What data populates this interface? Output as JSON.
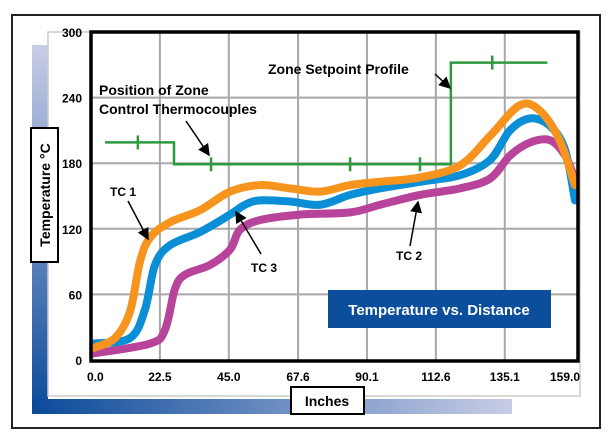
{
  "chart_data": {
    "type": "line",
    "title": "Temperature vs. Distance",
    "xlabel": "Inches",
    "ylabel": "Temperature °C",
    "xlim": [
      0,
      159
    ],
    "ylim": [
      0,
      300
    ],
    "xticks": [
      "0.0",
      "22.5",
      "45.0",
      "67.6",
      "90.1",
      "112.6",
      "135.1",
      "159.0"
    ],
    "xtick_values": [
      0,
      22.5,
      45.0,
      67.6,
      90.1,
      112.6,
      135.1,
      159.0
    ],
    "yticks": [
      "0",
      "60",
      "120",
      "180",
      "240",
      "300"
    ],
    "ytick_values": [
      0,
      60,
      120,
      180,
      240,
      300
    ],
    "grid": true,
    "series": [
      {
        "name": "TC 1",
        "color": "#f7941d",
        "points": [
          [
            0.7,
            11
          ],
          [
            7.8,
            20
          ],
          [
            12.7,
            44
          ],
          [
            16,
            90
          ],
          [
            19.3,
            112
          ],
          [
            25.8,
            126
          ],
          [
            35.6,
            137
          ],
          [
            45.4,
            154
          ],
          [
            55.2,
            160
          ],
          [
            65,
            157
          ],
          [
            74.8,
            154
          ],
          [
            84.6,
            160
          ],
          [
            94.4,
            163
          ],
          [
            107.4,
            167
          ],
          [
            120.5,
            178
          ],
          [
            130.3,
            205
          ],
          [
            140,
            233
          ],
          [
            146.6,
            228
          ],
          [
            153,
            201
          ],
          [
            158,
            160
          ]
        ]
      },
      {
        "name": "TC 3",
        "color": "#0a8fd6",
        "points": [
          [
            0.7,
            15
          ],
          [
            12.7,
            20
          ],
          [
            17.6,
            46
          ],
          [
            20.9,
            87
          ],
          [
            25.8,
            105
          ],
          [
            35.6,
            117
          ],
          [
            45.4,
            133
          ],
          [
            50.3,
            142
          ],
          [
            55.2,
            146
          ],
          [
            65,
            145
          ],
          [
            74.8,
            142
          ],
          [
            84.6,
            151
          ],
          [
            94.4,
            157
          ],
          [
            107.4,
            163
          ],
          [
            120.5,
            169
          ],
          [
            130.3,
            183
          ],
          [
            136.8,
            210
          ],
          [
            143.4,
            221
          ],
          [
            149.9,
            214
          ],
          [
            154.8,
            192
          ],
          [
            158,
            146
          ]
        ]
      },
      {
        "name": "TC 2",
        "color": "#b8439a",
        "points": [
          [
            0.7,
            6
          ],
          [
            19.3,
            15
          ],
          [
            24.2,
            28
          ],
          [
            27.4,
            65
          ],
          [
            30.7,
            78
          ],
          [
            38.9,
            87
          ],
          [
            45.4,
            101
          ],
          [
            48.6,
            119
          ],
          [
            55.2,
            128
          ],
          [
            68.3,
            133
          ],
          [
            84.6,
            135
          ],
          [
            94.4,
            142
          ],
          [
            107.4,
            151
          ],
          [
            120.5,
            157
          ],
          [
            130.3,
            166
          ],
          [
            136.8,
            187
          ],
          [
            143.4,
            199
          ],
          [
            149.9,
            201
          ],
          [
            154.8,
            187
          ],
          [
            158,
            165
          ]
        ]
      },
      {
        "name": "Zone Setpoint Profile",
        "color": "#2e9a3e",
        "step": true,
        "points": [
          [
            4.6,
            199
          ],
          [
            27.1,
            199
          ],
          [
            27.1,
            179
          ],
          [
            117.5,
            179
          ],
          [
            117.5,
            272
          ],
          [
            149,
            272
          ]
        ],
        "thermocouple_positions": [
          [
            15.3,
            199
          ],
          [
            39.2,
            179
          ],
          [
            84.6,
            179
          ],
          [
            107.4,
            179
          ],
          [
            131,
            272
          ]
        ]
      }
    ],
    "annotations": [
      {
        "text": "Zone Setpoint Profile"
      },
      {
        "text_lines": [
          "Position of Zone",
          "Control Thermocouples"
        ]
      },
      {
        "text": "TC 1"
      },
      {
        "text": "TC 2"
      },
      {
        "text": "TC 3"
      }
    ]
  }
}
